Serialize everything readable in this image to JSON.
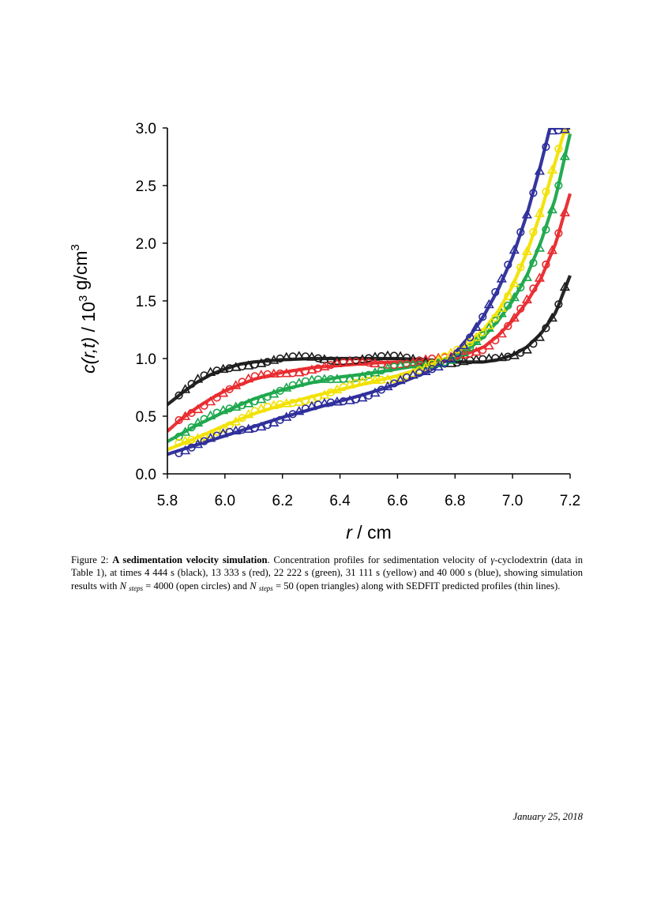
{
  "chart_data": {
    "type": "scatter",
    "title": "",
    "xlabel": {
      "var": "r",
      "unit": " / cm"
    },
    "ylabel": {
      "var": "c(r,t)",
      "rest": "  / 10",
      "exp": "3",
      "unit": " g/cm",
      "unit_exp": "3"
    },
    "xlim": [
      5.8,
      7.2
    ],
    "ylim": [
      0.0,
      3.0
    ],
    "x_ticks": [
      "5.8",
      "6.0",
      "6.2",
      "6.4",
      "6.6",
      "6.8",
      "7.0",
      "7.2"
    ],
    "y_ticks": [
      "0.0",
      "0.5",
      "1.0",
      "1.5",
      "2.0",
      "2.5",
      "3.0"
    ],
    "legend_markers": {
      "circles": "N_steps = 4000 (open circles)",
      "triangles": "N_steps = 50 (open triangles)",
      "lines": "SEDFIT predicted profiles (thin lines)"
    },
    "series": [
      {
        "name": "4 444 s",
        "color": "#1a1a1a",
        "r": [
          5.8,
          5.85,
          5.9,
          5.95,
          6.0,
          6.05,
          6.1,
          6.15,
          6.2,
          6.3,
          6.4,
          6.5,
          6.6,
          6.7,
          6.8,
          6.9,
          6.95,
          7.0,
          7.05,
          7.1,
          7.15,
          7.2
        ],
        "c": [
          0.6,
          0.7,
          0.79,
          0.86,
          0.91,
          0.95,
          0.97,
          0.98,
          0.99,
          1.0,
          1.0,
          1.0,
          1.0,
          0.99,
          0.97,
          0.97,
          0.99,
          1.03,
          1.1,
          1.22,
          1.4,
          1.72
        ]
      },
      {
        "name": "13 333 s",
        "color": "#e8282c",
        "r": [
          5.8,
          5.85,
          5.9,
          5.95,
          6.0,
          6.05,
          6.1,
          6.15,
          6.2,
          6.3,
          6.4,
          6.5,
          6.6,
          6.7,
          6.75,
          6.8,
          6.9,
          6.95,
          7.0,
          7.05,
          7.1,
          7.15,
          7.2
        ],
        "c": [
          0.37,
          0.48,
          0.57,
          0.65,
          0.72,
          0.77,
          0.82,
          0.85,
          0.88,
          0.92,
          0.94,
          0.96,
          0.97,
          0.98,
          0.98,
          1.0,
          1.1,
          1.2,
          1.33,
          1.49,
          1.7,
          2.0,
          2.43
        ]
      },
      {
        "name": "22 222 s",
        "color": "#1aa64a",
        "r": [
          5.8,
          5.9,
          6.0,
          6.1,
          6.2,
          6.3,
          6.4,
          6.5,
          6.6,
          6.7,
          6.8,
          6.85,
          6.9,
          6.95,
          7.0,
          7.05,
          7.1,
          7.15,
          7.2
        ],
        "c": [
          0.28,
          0.42,
          0.54,
          0.65,
          0.73,
          0.79,
          0.84,
          0.87,
          0.91,
          0.95,
          1.02,
          1.09,
          1.19,
          1.33,
          1.5,
          1.72,
          2.02,
          2.4,
          2.95
        ]
      },
      {
        "name": "31 111 s",
        "color": "#f2e100",
        "r": [
          5.8,
          5.9,
          6.0,
          6.1,
          6.2,
          6.3,
          6.4,
          6.5,
          6.6,
          6.7,
          6.75,
          6.8,
          6.85,
          6.9,
          6.95,
          7.0,
          7.05,
          7.1,
          7.15,
          7.18,
          7.2
        ],
        "c": [
          0.21,
          0.31,
          0.42,
          0.52,
          0.6,
          0.67,
          0.73,
          0.79,
          0.85,
          0.93,
          0.98,
          1.04,
          1.13,
          1.25,
          1.41,
          1.63,
          1.92,
          2.28,
          2.72,
          2.97,
          3.0
        ]
      },
      {
        "name": "40 000 s",
        "color": "#2b2b9a",
        "r": [
          5.8,
          5.9,
          6.0,
          6.1,
          6.2,
          6.3,
          6.4,
          6.5,
          6.6,
          6.7,
          6.75,
          6.8,
          6.85,
          6.9,
          6.95,
          7.0,
          7.05,
          7.1,
          7.13,
          7.15
        ],
        "c": [
          0.17,
          0.25,
          0.33,
          0.41,
          0.49,
          0.56,
          0.63,
          0.7,
          0.78,
          0.88,
          0.95,
          1.05,
          1.19,
          1.37,
          1.6,
          1.88,
          2.25,
          2.7,
          3.0,
          3.0
        ]
      }
    ]
  },
  "caption": {
    "label": "Figure 2: ",
    "bold_title": "A sedimentation velocity simulation",
    "part1": ". Concentration profiles for sedimentation velocity of ",
    "gamma": "γ",
    "part2": "-cyclodextrin (data in Table 1), at times 4 444 s (black), 13 333 s (red), 22 222 s (green), 31 111 s (yellow) and 40 000 s (blue), showing simulation results with ",
    "n1": "N",
    "sub1": "steps",
    "part3": " = 4000 (open circles) and ",
    "n2": "N",
    "sub2": "steps",
    "part4": " = 50 (open triangles) along with SEDFIT predicted profiles (thin lines)."
  },
  "footer": {
    "date": "January 25, 2018"
  }
}
